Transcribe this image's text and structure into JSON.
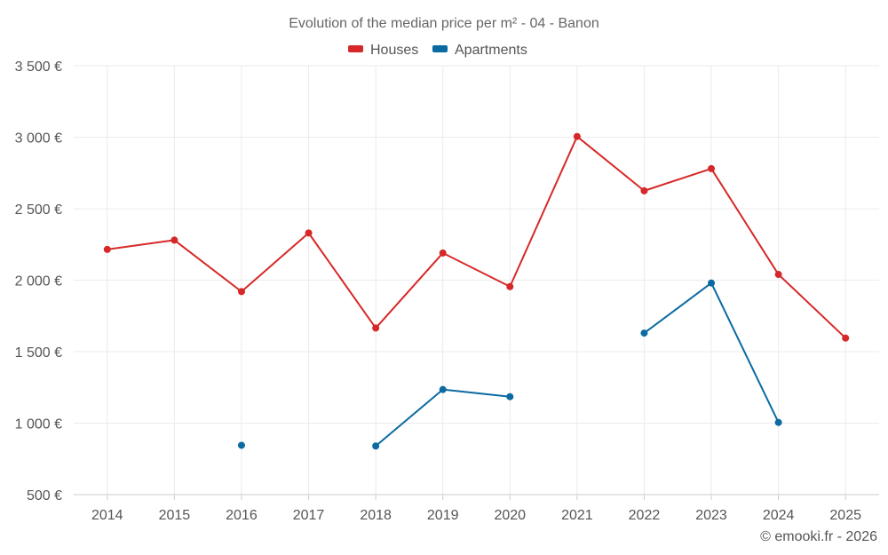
{
  "chart_data": {
    "type": "line",
    "title": "Evolution of the median price per m² - 04 - Banon",
    "xlabel": "",
    "ylabel": "",
    "categories": [
      "2014",
      "2015",
      "2016",
      "2017",
      "2018",
      "2019",
      "2020",
      "2021",
      "2022",
      "2023",
      "2024",
      "2025"
    ],
    "ylim": [
      500,
      3500
    ],
    "yticks": [
      500,
      1000,
      1500,
      2000,
      2500,
      3000,
      3500
    ],
    "ytick_labels": [
      "500 €",
      "1 000 €",
      "1 500 €",
      "2 000 €",
      "2 500 €",
      "3 000 €",
      "3 500 €"
    ],
    "grid": true,
    "legend_position": "top-center",
    "series": [
      {
        "name": "Houses",
        "color": "#d62828",
        "values": [
          2215,
          2280,
          1920,
          2330,
          1665,
          2190,
          1955,
          3005,
          2625,
          2780,
          2040,
          1595
        ]
      },
      {
        "name": "Apartments",
        "color": "#0a6aa1",
        "values": [
          null,
          null,
          845,
          null,
          840,
          1235,
          1185,
          null,
          1630,
          1980,
          1005,
          null
        ]
      }
    ]
  },
  "credit": "© emooki.fr - 2026"
}
